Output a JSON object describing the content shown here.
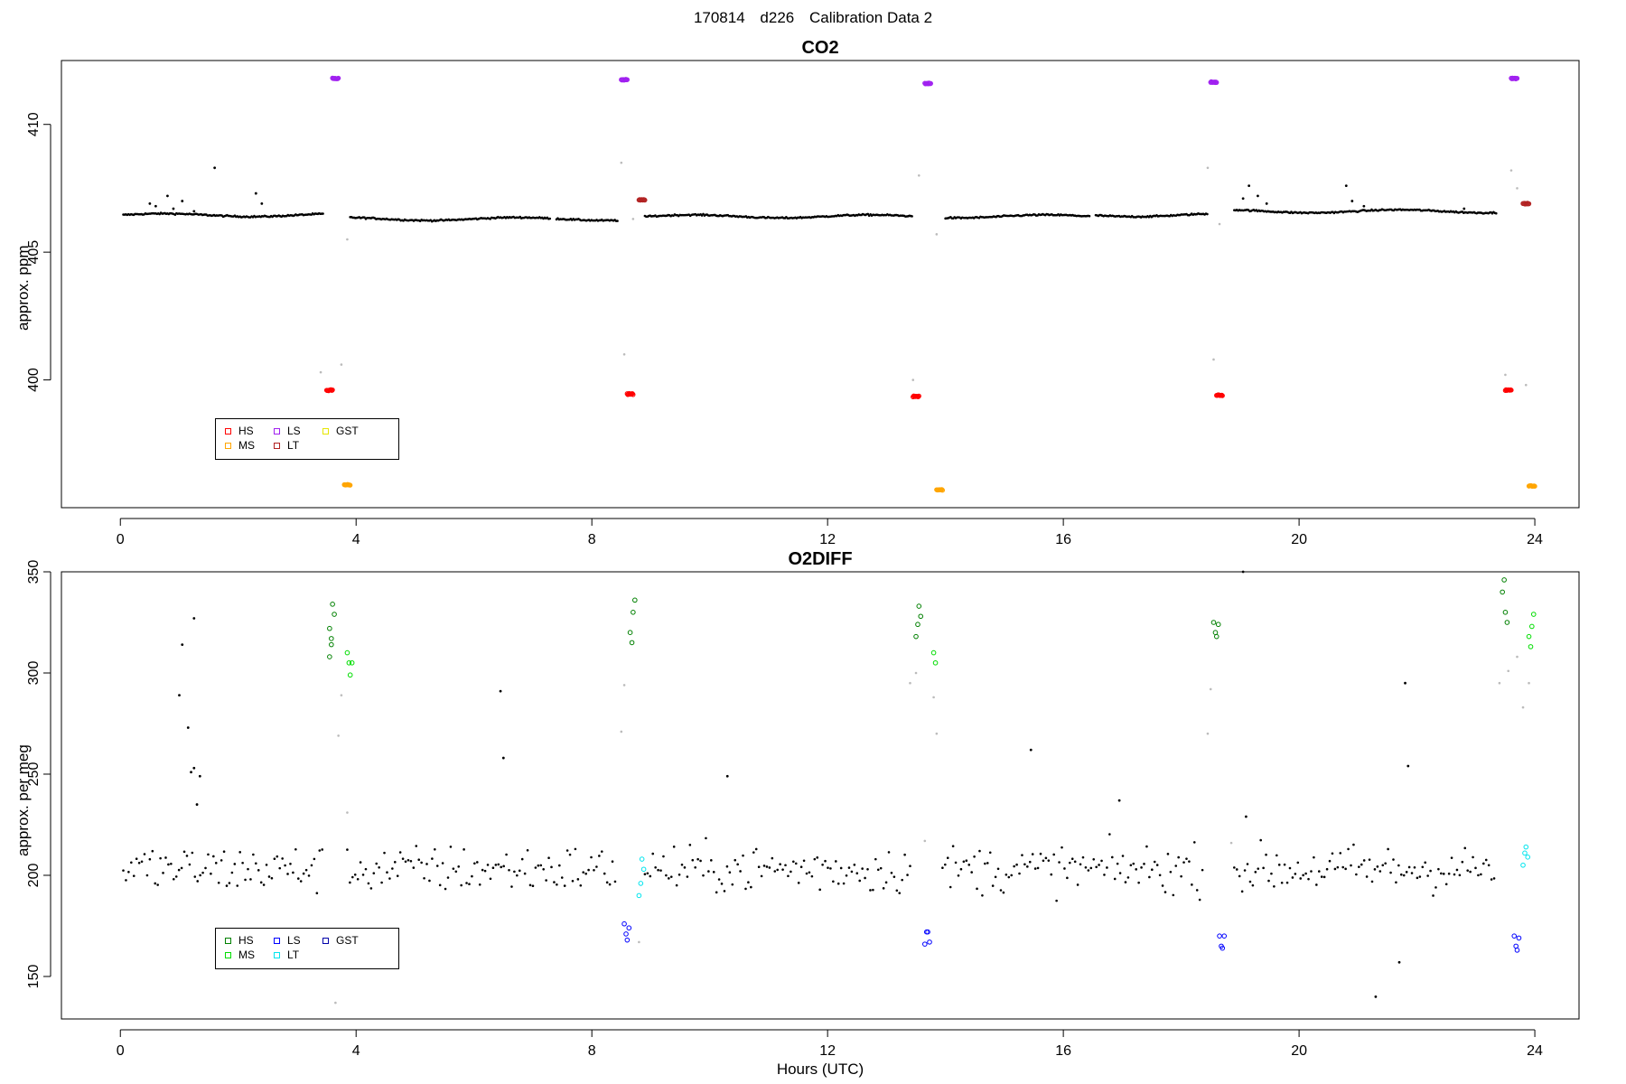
{
  "figure": {
    "title_parts": [
      "170814",
      "d226",
      "Calibration Data 2"
    ],
    "xlabel": "Hours (UTC)"
  },
  "chart_data": [
    {
      "type": "scatter",
      "title": "CO2",
      "ylabel": "approx. ppm",
      "xlabel": "",
      "xlim": [
        -1,
        24.75
      ],
      "ylim": [
        395,
        412.5
      ],
      "xticks": [
        0,
        4,
        8,
        12,
        16,
        20,
        24
      ],
      "yticks": [
        400,
        405,
        410
      ],
      "legend": {
        "placement": "bottom-left",
        "entries": [
          {
            "name": "HS",
            "color": "#ff0000"
          },
          {
            "name": "LS",
            "color": "#a020f0"
          },
          {
            "name": "GST",
            "color": "#e6e600"
          },
          {
            "name": "MS",
            "color": "#ffa500"
          },
          {
            "name": "LT",
            "color": "#b22222"
          }
        ]
      },
      "ambient_segments": [
        {
          "x": [
            0.05,
            3.45
          ],
          "y": 406.45
        },
        {
          "x": [
            3.9,
            7.3
          ],
          "y": 406.3
        },
        {
          "x": [
            7.4,
            8.45
          ],
          "y": 406.3
        },
        {
          "x": [
            8.9,
            13.45
          ],
          "y": 406.4
        },
        {
          "x": [
            14.0,
            16.45
          ],
          "y": 406.4
        },
        {
          "x": [
            16.55,
            18.45
          ],
          "y": 406.45
        },
        {
          "x": [
            18.9,
            23.35
          ],
          "y": 406.6
        }
      ],
      "ambient_outliers": [
        [
          0.5,
          406.9
        ],
        [
          0.6,
          406.8
        ],
        [
          0.8,
          407.2
        ],
        [
          0.9,
          406.7
        ],
        [
          1.05,
          407.0
        ],
        [
          1.25,
          406.6
        ],
        [
          1.6,
          408.3
        ],
        [
          2.3,
          407.3
        ],
        [
          2.4,
          406.9
        ],
        [
          19.05,
          407.1
        ],
        [
          19.15,
          407.6
        ],
        [
          19.3,
          407.2
        ],
        [
          19.45,
          406.9
        ],
        [
          20.8,
          407.6
        ],
        [
          20.9,
          407.0
        ],
        [
          21.1,
          406.8
        ],
        [
          22.8,
          406.7
        ]
      ],
      "transition_points": [
        [
          3.4,
          400.3
        ],
        [
          3.75,
          400.6
        ],
        [
          3.85,
          405.5
        ],
        [
          8.5,
          408.5
        ],
        [
          8.55,
          401.0
        ],
        [
          8.7,
          406.3
        ],
        [
          13.45,
          400.0
        ],
        [
          13.55,
          408.0
        ],
        [
          13.85,
          405.7
        ],
        [
          18.45,
          408.3
        ],
        [
          18.55,
          400.8
        ],
        [
          18.65,
          406.1
        ],
        [
          23.5,
          400.2
        ],
        [
          23.6,
          408.2
        ],
        [
          23.7,
          407.5
        ],
        [
          23.85,
          399.8
        ]
      ],
      "series": [
        {
          "name": "HS",
          "color": "#ff0000",
          "clusters": [
            [
              3.55,
              399.6
            ],
            [
              8.65,
              399.45
            ],
            [
              13.5,
              399.35
            ],
            [
              18.65,
              399.4
            ],
            [
              23.55,
              399.6
            ]
          ]
        },
        {
          "name": "LS",
          "color": "#a020f0",
          "clusters": [
            [
              3.65,
              411.8
            ],
            [
              8.55,
              411.75
            ],
            [
              13.7,
              411.6
            ],
            [
              18.55,
              411.65
            ],
            [
              23.65,
              411.8
            ]
          ]
        },
        {
          "name": "MS",
          "color": "#ffa500",
          "clusters": [
            [
              3.85,
              395.9
            ],
            [
              13.9,
              395.7
            ],
            [
              23.95,
              395.85
            ]
          ]
        },
        {
          "name": "LT",
          "color": "#b22222",
          "clusters": [
            [
              8.85,
              407.05
            ],
            [
              23.85,
              406.9
            ]
          ]
        }
      ]
    },
    {
      "type": "scatter",
      "title": "O2DIFF",
      "ylabel": "approx. per meg",
      "xlabel": "Hours (UTC)",
      "xlim": [
        -1,
        24.75
      ],
      "ylim": [
        129,
        350
      ],
      "xticks": [
        0,
        4,
        8,
        12,
        16,
        20,
        24
      ],
      "yticks": [
        150,
        200,
        250,
        300,
        350
      ],
      "legend": {
        "placement": "bottom-left",
        "entries": [
          {
            "name": "HS",
            "color": "#008000"
          },
          {
            "name": "LS",
            "color": "#0000ff"
          },
          {
            "name": "GST",
            "color": "#0000aa"
          },
          {
            "name": "MS",
            "color": "#00dd00"
          },
          {
            "name": "LT",
            "color": "#00e5ee"
          }
        ]
      },
      "ambient_center": 203,
      "ambient_spread": 12,
      "ambient_segments": [
        [
          0.05,
          3.45
        ],
        [
          3.85,
          8.4
        ],
        [
          8.9,
          13.4
        ],
        [
          13.95,
          18.4
        ],
        [
          18.9,
          23.35
        ]
      ],
      "ambient_outliers": [
        [
          1.05,
          314
        ],
        [
          1.15,
          273
        ],
        [
          1.2,
          251
        ],
        [
          1.25,
          253
        ],
        [
          1.3,
          235
        ],
        [
          1.35,
          249
        ],
        [
          1.25,
          327
        ],
        [
          1.0,
          289
        ],
        [
          6.45,
          291
        ],
        [
          6.5,
          258
        ],
        [
          10.3,
          249
        ],
        [
          15.45,
          262
        ],
        [
          16.95,
          237
        ],
        [
          19.1,
          229
        ],
        [
          21.3,
          140
        ],
        [
          21.8,
          295
        ],
        [
          21.85,
          254
        ],
        [
          21.7,
          157
        ],
        [
          19.05,
          350
        ]
      ],
      "transition_points": [
        [
          3.65,
          137
        ],
        [
          3.7,
          269
        ],
        [
          3.75,
          289
        ],
        [
          3.85,
          231
        ],
        [
          8.5,
          271
        ],
        [
          8.55,
          294
        ],
        [
          8.8,
          167
        ],
        [
          13.4,
          295
        ],
        [
          13.5,
          300
        ],
        [
          13.65,
          217
        ],
        [
          13.85,
          270
        ],
        [
          13.8,
          288
        ],
        [
          18.45,
          270
        ],
        [
          18.5,
          292
        ],
        [
          18.85,
          216
        ],
        [
          23.4,
          295
        ],
        [
          23.55,
          301
        ],
        [
          23.7,
          308
        ],
        [
          23.8,
          283
        ],
        [
          23.9,
          295
        ]
      ],
      "series": [
        {
          "name": "HS",
          "color": "#008000",
          "clusters": [
            [
              3.55,
              322,
              3.55,
              308,
              3.6,
              334
            ],
            [
              8.65,
              320,
              8.7,
              330
            ],
            [
              13.55,
              333,
              13.5,
              318
            ],
            [
              18.55,
              325,
              18.6,
              318
            ],
            [
              23.5,
              330,
              23.45,
              340
            ]
          ]
        },
        {
          "name": "MS",
          "color": "#00dd00",
          "clusters": [
            [
              3.85,
              310,
              3.9,
              299
            ],
            [
              13.8,
              310
            ],
            [
              23.9,
              318,
              23.95,
              323
            ]
          ]
        },
        {
          "name": "LS",
          "color": "#0000ff",
          "clusters": [
            [
              8.55,
              176,
              8.6,
              168
            ],
            [
              13.7,
              172,
              13.65,
              166
            ],
            [
              18.65,
              170,
              18.7,
              164
            ],
            [
              23.65,
              170,
              23.7,
              163
            ]
          ]
        },
        {
          "name": "LT",
          "color": "#00e5ee",
          "clusters": [
            [
              8.85,
              208,
              8.8,
              190
            ],
            [
              23.85,
              214,
              23.8,
              205
            ]
          ]
        }
      ]
    }
  ]
}
